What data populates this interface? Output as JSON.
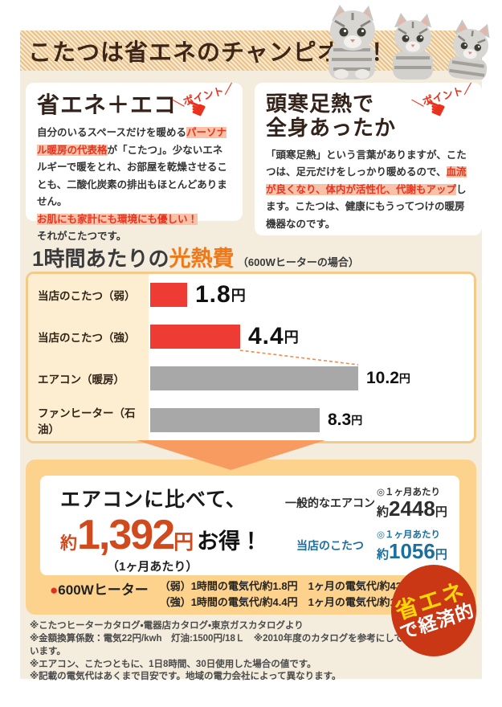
{
  "banner": {
    "title": "こたつは省エネのチャンピオン！"
  },
  "colors": {
    "banner_stripe": "#e9c28a",
    "content_bg": "#f4ecdd",
    "highlight_bg": "#f9c2a8",
    "highlight_text": "#e8331f",
    "bar_red": "#ee3b33",
    "bar_gray": "#a8a8a8",
    "chart_border": "#f3ca8a",
    "savings_box": "#fcd28d",
    "arrow_orange": "#f89b61",
    "amount_red": "#d14a1e",
    "kotatsu_blue": "#1b6f9e",
    "badge_red": "#ca3714",
    "badge_yellow": "#ffd705"
  },
  "cards": [
    {
      "title": "省エネ＋エコ",
      "point_label": "＼ポイント／",
      "body": [
        "自分のいるスペースだけを暖める",
        "パーソナル暖房の代表格",
        "が「こたつ」。少ないエネルギーで暖をとれ、お部屋を乾燥させることも、二酸化炭素の排出もほとんどありません。",
        "お肌にも家計にも環境にも優しい！",
        "それがこたつです。"
      ]
    },
    {
      "title_line1": "頭寒足熱で",
      "title_line2": "全身あったか",
      "point_label": "＼ポイント／",
      "body": [
        "「頭寒足熱」という言葉がありますが、こたつは、足元だけをしっかり暖めるので、",
        "血流が良くなり、体内が活性化、代謝もアップ",
        "します。こたつは、健康にもうってつけの暖房機器なのです。"
      ]
    }
  ],
  "chart_heading": {
    "prefix": "1時間あたりの",
    "em": "光熱費",
    "suffix": "（600Wヒーターの場合）"
  },
  "chart_data": {
    "type": "bar",
    "orientation": "horizontal",
    "title": "1時間あたりの光熱費",
    "subtitle": "600Wヒーターの場合",
    "unit": "円",
    "categories": [
      "当店のこたつ（弱）",
      "当店のこたつ（強）",
      "エアコン（暖房）",
      "ファンヒーター（石油）"
    ],
    "values": [
      1.8,
      4.4,
      10.2,
      8.3
    ],
    "value_labels": [
      "1.8円",
      "4.4円",
      "10.2円",
      "8.3円"
    ],
    "bar_colors": [
      "#ee3b33",
      "#ee3b33",
      "#a8a8a8",
      "#a8a8a8"
    ],
    "xlim": [
      0,
      11
    ],
    "grid": false,
    "legend": false,
    "annotation": "dashed connector from 4.4円 bar to 10.2円 bar"
  },
  "savings": {
    "compare_label": "エアコンに比べて、",
    "approx": "約",
    "amount": "1,392",
    "unit": "円",
    "otoku_label": "お得！",
    "per_month": "（1ヶ月あたり）",
    "rows": [
      {
        "name": "一般的なエアコン",
        "period": "◎１ヶ月あたり",
        "price_prefix": "約",
        "price_num": "2448",
        "price_unit": "円"
      },
      {
        "name": "当店のこたつ",
        "period": "◎１ヶ月あたり",
        "price_prefix": "約",
        "price_num": "1056",
        "price_unit": "円"
      }
    ]
  },
  "heater_note": {
    "bullet": "●",
    "label": "600Wヒーター",
    "lines": [
      "（弱）1時間の電気代/約1.8円　1ヶ月の電気代/約432円",
      "（強）1時間の電気代/約4.4円　1ヶ月の電気代/約1056円"
    ]
  },
  "eco_badge": {
    "line1": "省エネ",
    "line2": "で経済的"
  },
  "footnotes": [
    "※こたつヒーターカタログ・電器店カタログ・東京ガスカタログより",
    "※金額換算係数：電気22円/kwh　灯油:1500円/18Ｌ　※2010年度のカタログを参考にしています。",
    "※エアコン、こたつともに、1日8時間、30日使用した場合の値です。",
    "※記載の電気代はあくまで目安です。地域の電力会社によって異なります。"
  ]
}
